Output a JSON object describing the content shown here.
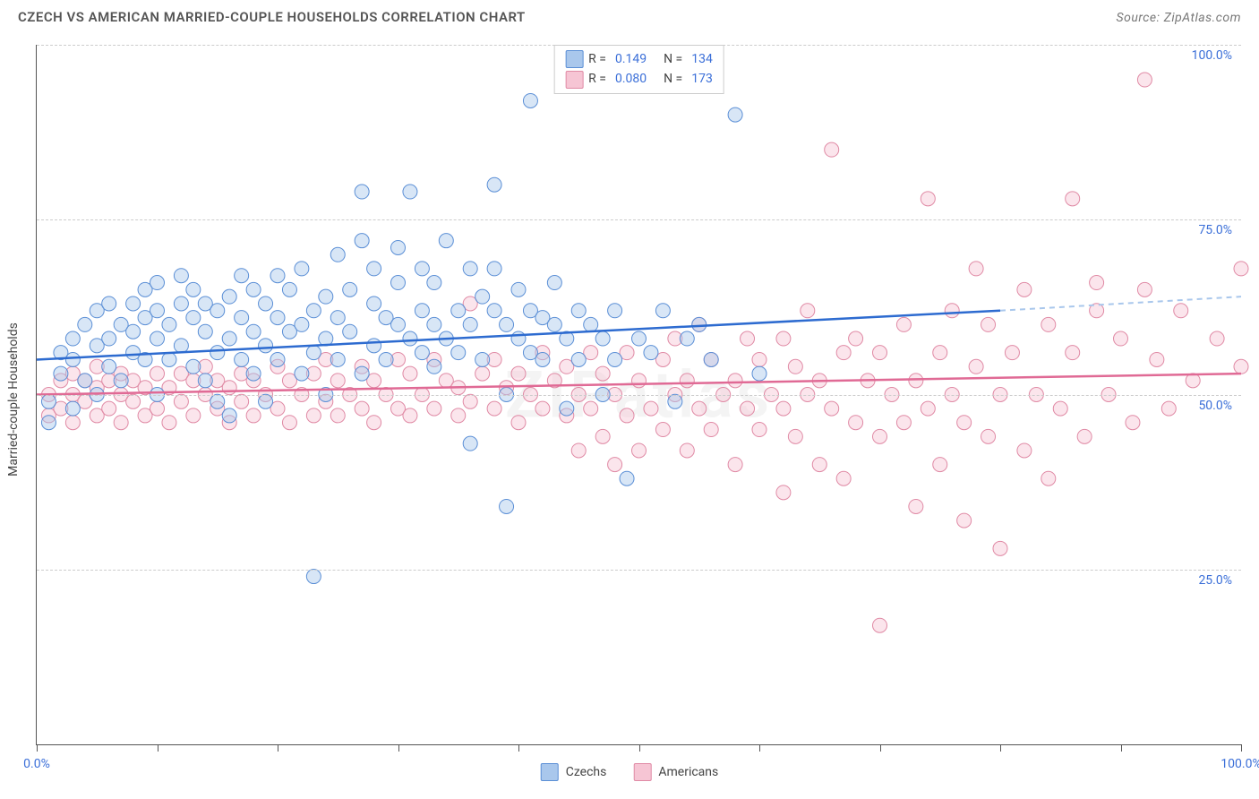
{
  "header": {
    "title": "CZECH VS AMERICAN MARRIED-COUPLE HOUSEHOLDS CORRELATION CHART",
    "source_label": "Source:",
    "source_name": "ZipAtlas.com"
  },
  "watermark": "ZIPatlas",
  "chart": {
    "type": "scatter",
    "ylabel": "Married-couple Households",
    "xlim": [
      0,
      100
    ],
    "ylim": [
      0,
      100
    ],
    "xtick_positions": [
      0,
      10,
      20,
      30,
      40,
      50,
      60,
      70,
      80,
      90,
      100
    ],
    "xtick_labels": {
      "0": "0.0%",
      "100": "100.0%"
    },
    "ytick_positions": [
      25,
      50,
      75,
      100
    ],
    "ytick_labels": {
      "25": "25.0%",
      "50": "50.0%",
      "75": "75.0%",
      "100": "100.0%"
    },
    "grid_color": "#cccccc",
    "background_color": "#ffffff",
    "marker_radius": 8,
    "marker_opacity": 0.45,
    "series": [
      {
        "name": "Czechs",
        "fill_color": "#a9c7ec",
        "stroke_color": "#5b8fd6",
        "line_color": "#2d6bd0",
        "R": "0.149",
        "N": "134",
        "trend": {
          "x1": 0,
          "y1": 55,
          "x2": 80,
          "y2": 62,
          "x2_dash": 100,
          "y2_dash": 64
        },
        "points": [
          [
            1,
            46
          ],
          [
            1,
            49
          ],
          [
            2,
            53
          ],
          [
            2,
            56
          ],
          [
            3,
            48
          ],
          [
            3,
            55
          ],
          [
            3,
            58
          ],
          [
            4,
            52
          ],
          [
            4,
            60
          ],
          [
            5,
            50
          ],
          [
            5,
            57
          ],
          [
            5,
            62
          ],
          [
            6,
            54
          ],
          [
            6,
            58
          ],
          [
            6,
            63
          ],
          [
            7,
            52
          ],
          [
            7,
            60
          ],
          [
            8,
            56
          ],
          [
            8,
            63
          ],
          [
            8,
            59
          ],
          [
            9,
            55
          ],
          [
            9,
            61
          ],
          [
            9,
            65
          ],
          [
            10,
            50
          ],
          [
            10,
            58
          ],
          [
            10,
            62
          ],
          [
            10,
            66
          ],
          [
            11,
            55
          ],
          [
            11,
            60
          ],
          [
            12,
            57
          ],
          [
            12,
            63
          ],
          [
            12,
            67
          ],
          [
            13,
            54
          ],
          [
            13,
            61
          ],
          [
            13,
            65
          ],
          [
            14,
            52
          ],
          [
            14,
            59
          ],
          [
            14,
            63
          ],
          [
            15,
            56
          ],
          [
            15,
            62
          ],
          [
            15,
            49
          ],
          [
            16,
            58
          ],
          [
            16,
            64
          ],
          [
            16,
            47
          ],
          [
            17,
            55
          ],
          [
            17,
            61
          ],
          [
            17,
            67
          ],
          [
            18,
            53
          ],
          [
            18,
            59
          ],
          [
            18,
            65
          ],
          [
            19,
            57
          ],
          [
            19,
            63
          ],
          [
            19,
            49
          ],
          [
            20,
            55
          ],
          [
            20,
            61
          ],
          [
            20,
            67
          ],
          [
            21,
            59
          ],
          [
            21,
            65
          ],
          [
            22,
            53
          ],
          [
            22,
            60
          ],
          [
            22,
            68
          ],
          [
            23,
            56
          ],
          [
            23,
            62
          ],
          [
            23,
            24
          ],
          [
            24,
            58
          ],
          [
            24,
            50
          ],
          [
            24,
            64
          ],
          [
            25,
            55
          ],
          [
            25,
            61
          ],
          [
            25,
            70
          ],
          [
            26,
            59
          ],
          [
            26,
            65
          ],
          [
            27,
            53
          ],
          [
            27,
            72
          ],
          [
            27,
            79
          ],
          [
            28,
            57
          ],
          [
            28,
            63
          ],
          [
            28,
            68
          ],
          [
            29,
            55
          ],
          [
            29,
            61
          ],
          [
            30,
            60
          ],
          [
            30,
            66
          ],
          [
            30,
            71
          ],
          [
            31,
            58
          ],
          [
            31,
            79
          ],
          [
            32,
            56
          ],
          [
            32,
            62
          ],
          [
            32,
            68
          ],
          [
            33,
            54
          ],
          [
            33,
            60
          ],
          [
            33,
            66
          ],
          [
            34,
            58
          ],
          [
            34,
            72
          ],
          [
            35,
            56
          ],
          [
            35,
            62
          ],
          [
            36,
            43
          ],
          [
            36,
            60
          ],
          [
            36,
            68
          ],
          [
            37,
            55
          ],
          [
            37,
            64
          ],
          [
            38,
            62
          ],
          [
            38,
            68
          ],
          [
            38,
            80
          ],
          [
            39,
            34
          ],
          [
            39,
            50
          ],
          [
            39,
            60
          ],
          [
            40,
            58
          ],
          [
            40,
            65
          ],
          [
            41,
            56
          ],
          [
            41,
            62
          ],
          [
            41,
            92
          ],
          [
            42,
            55
          ],
          [
            42,
            61
          ],
          [
            43,
            60
          ],
          [
            43,
            66
          ],
          [
            44,
            48
          ],
          [
            44,
            58
          ],
          [
            45,
            55
          ],
          [
            45,
            62
          ],
          [
            46,
            60
          ],
          [
            47,
            50
          ],
          [
            47,
            58
          ],
          [
            48,
            55
          ],
          [
            48,
            62
          ],
          [
            49,
            38
          ],
          [
            50,
            58
          ],
          [
            51,
            56
          ],
          [
            52,
            62
          ],
          [
            53,
            49
          ],
          [
            54,
            58
          ],
          [
            55,
            60
          ],
          [
            56,
            55
          ],
          [
            58,
            90
          ],
          [
            60,
            53
          ]
        ]
      },
      {
        "name": "Americans",
        "fill_color": "#f6c5d4",
        "stroke_color": "#e08aa5",
        "line_color": "#e06a95",
        "R": "0.080",
        "N": "173",
        "trend": {
          "x1": 0,
          "y1": 50,
          "x2": 100,
          "y2": 53
        },
        "points": [
          [
            1,
            47
          ],
          [
            1,
            50
          ],
          [
            2,
            48
          ],
          [
            2,
            52
          ],
          [
            3,
            46
          ],
          [
            3,
            50
          ],
          [
            3,
            53
          ],
          [
            4,
            49
          ],
          [
            4,
            52
          ],
          [
            5,
            47
          ],
          [
            5,
            51
          ],
          [
            5,
            54
          ],
          [
            6,
            48
          ],
          [
            6,
            52
          ],
          [
            7,
            46
          ],
          [
            7,
            50
          ],
          [
            7,
            53
          ],
          [
            8,
            49
          ],
          [
            8,
            52
          ],
          [
            9,
            47
          ],
          [
            9,
            51
          ],
          [
            10,
            48
          ],
          [
            10,
            53
          ],
          [
            11,
            46
          ],
          [
            11,
            51
          ],
          [
            12,
            49
          ],
          [
            12,
            53
          ],
          [
            13,
            47
          ],
          [
            13,
            52
          ],
          [
            14,
            50
          ],
          [
            14,
            54
          ],
          [
            15,
            48
          ],
          [
            15,
            52
          ],
          [
            16,
            46
          ],
          [
            16,
            51
          ],
          [
            17,
            49
          ],
          [
            17,
            53
          ],
          [
            18,
            47
          ],
          [
            18,
            52
          ],
          [
            19,
            50
          ],
          [
            20,
            48
          ],
          [
            20,
            54
          ],
          [
            21,
            46
          ],
          [
            21,
            52
          ],
          [
            22,
            50
          ],
          [
            23,
            47
          ],
          [
            23,
            53
          ],
          [
            24,
            49
          ],
          [
            24,
            55
          ],
          [
            25,
            47
          ],
          [
            25,
            52
          ],
          [
            26,
            50
          ],
          [
            27,
            48
          ],
          [
            27,
            54
          ],
          [
            28,
            46
          ],
          [
            28,
            52
          ],
          [
            29,
            50
          ],
          [
            30,
            48
          ],
          [
            30,
            55
          ],
          [
            31,
            47
          ],
          [
            31,
            53
          ],
          [
            32,
            50
          ],
          [
            33,
            48
          ],
          [
            33,
            55
          ],
          [
            34,
            52
          ],
          [
            35,
            47
          ],
          [
            35,
            51
          ],
          [
            36,
            49
          ],
          [
            36,
            63
          ],
          [
            37,
            53
          ],
          [
            38,
            48
          ],
          [
            38,
            55
          ],
          [
            39,
            51
          ],
          [
            40,
            46
          ],
          [
            40,
            53
          ],
          [
            41,
            50
          ],
          [
            42,
            48
          ],
          [
            42,
            56
          ],
          [
            43,
            52
          ],
          [
            44,
            47
          ],
          [
            44,
            54
          ],
          [
            45,
            42
          ],
          [
            45,
            50
          ],
          [
            46,
            48
          ],
          [
            46,
            56
          ],
          [
            47,
            44
          ],
          [
            47,
            53
          ],
          [
            48,
            40
          ],
          [
            48,
            50
          ],
          [
            49,
            47
          ],
          [
            49,
            56
          ],
          [
            50,
            42
          ],
          [
            50,
            52
          ],
          [
            51,
            48
          ],
          [
            52,
            45
          ],
          [
            52,
            55
          ],
          [
            53,
            50
          ],
          [
            53,
            58
          ],
          [
            54,
            42
          ],
          [
            54,
            52
          ],
          [
            55,
            48
          ],
          [
            55,
            60
          ],
          [
            56,
            45
          ],
          [
            56,
            55
          ],
          [
            57,
            50
          ],
          [
            58,
            40
          ],
          [
            58,
            52
          ],
          [
            59,
            48
          ],
          [
            59,
            58
          ],
          [
            60,
            45
          ],
          [
            60,
            55
          ],
          [
            61,
            50
          ],
          [
            62,
            36
          ],
          [
            62,
            48
          ],
          [
            62,
            58
          ],
          [
            63,
            44
          ],
          [
            63,
            54
          ],
          [
            64,
            50
          ],
          [
            64,
            62
          ],
          [
            65,
            40
          ],
          [
            65,
            52
          ],
          [
            66,
            48
          ],
          [
            66,
            85
          ],
          [
            67,
            38
          ],
          [
            67,
            56
          ],
          [
            68,
            46
          ],
          [
            68,
            58
          ],
          [
            69,
            52
          ],
          [
            70,
            17
          ],
          [
            70,
            44
          ],
          [
            70,
            56
          ],
          [
            71,
            50
          ],
          [
            72,
            46
          ],
          [
            72,
            60
          ],
          [
            73,
            34
          ],
          [
            73,
            52
          ],
          [
            74,
            48
          ],
          [
            74,
            78
          ],
          [
            75,
            40
          ],
          [
            75,
            56
          ],
          [
            76,
            50
          ],
          [
            76,
            62
          ],
          [
            77,
            32
          ],
          [
            77,
            46
          ],
          [
            78,
            54
          ],
          [
            78,
            68
          ],
          [
            79,
            44
          ],
          [
            79,
            60
          ],
          [
            80,
            28
          ],
          [
            80,
            50
          ],
          [
            81,
            56
          ],
          [
            82,
            42
          ],
          [
            82,
            65
          ],
          [
            83,
            50
          ],
          [
            84,
            38
          ],
          [
            84,
            60
          ],
          [
            85,
            48
          ],
          [
            86,
            56
          ],
          [
            86,
            78
          ],
          [
            87,
            44
          ],
          [
            88,
            62
          ],
          [
            88,
            66
          ],
          [
            89,
            50
          ],
          [
            90,
            58
          ],
          [
            91,
            46
          ],
          [
            92,
            65
          ],
          [
            92,
            95
          ],
          [
            93,
            55
          ],
          [
            94,
            48
          ],
          [
            95,
            62
          ],
          [
            96,
            52
          ],
          [
            98,
            58
          ],
          [
            100,
            54
          ],
          [
            100,
            68
          ]
        ]
      }
    ],
    "legend": {
      "r_label": "R =",
      "n_label": "N =",
      "series1_label": "Czechs",
      "series2_label": "Americans"
    }
  }
}
